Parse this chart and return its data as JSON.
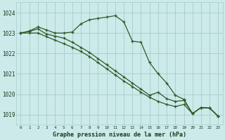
{
  "title": "Graphe pression niveau de la mer (hPa)",
  "bg_color": "#cceaea",
  "grid_color": "#aacaca",
  "line_color": "#2d5a27",
  "xlim": [
    -0.5,
    23.5
  ],
  "ylim": [
    1018.5,
    1024.5
  ],
  "yticks": [
    1019,
    1020,
    1021,
    1022,
    1023,
    1024
  ],
  "xticks": [
    0,
    1,
    2,
    3,
    4,
    5,
    6,
    7,
    8,
    9,
    10,
    11,
    12,
    13,
    14,
    15,
    16,
    17,
    18,
    19,
    20,
    21,
    22,
    23
  ],
  "line1": [
    1023.0,
    1023.1,
    1023.3,
    1023.15,
    1023.0,
    1023.0,
    1023.05,
    1023.45,
    1023.65,
    1023.72,
    1023.78,
    1023.85,
    1023.55,
    1022.6,
    1022.55,
    1021.55,
    1021.0,
    1020.55,
    1019.95,
    1019.75,
    1019.05,
    1019.35,
    1019.32,
    1018.92
  ],
  "line2": [
    1023.0,
    1023.08,
    1023.2,
    1022.95,
    1022.85,
    1022.75,
    1022.55,
    1022.3,
    1022.05,
    1021.75,
    1021.45,
    1021.15,
    1020.85,
    1020.55,
    1020.25,
    1019.95,
    1020.1,
    1019.78,
    1019.65,
    1019.7,
    1019.05,
    1019.35,
    1019.32,
    1018.92
  ],
  "line3": [
    1023.0,
    1023.0,
    1023.0,
    1022.82,
    1022.65,
    1022.48,
    1022.3,
    1022.1,
    1021.85,
    1021.55,
    1021.25,
    1020.95,
    1020.65,
    1020.38,
    1020.1,
    1019.85,
    1019.65,
    1019.5,
    1019.4,
    1019.5,
    1019.05,
    1019.35,
    1019.32,
    1018.92
  ]
}
